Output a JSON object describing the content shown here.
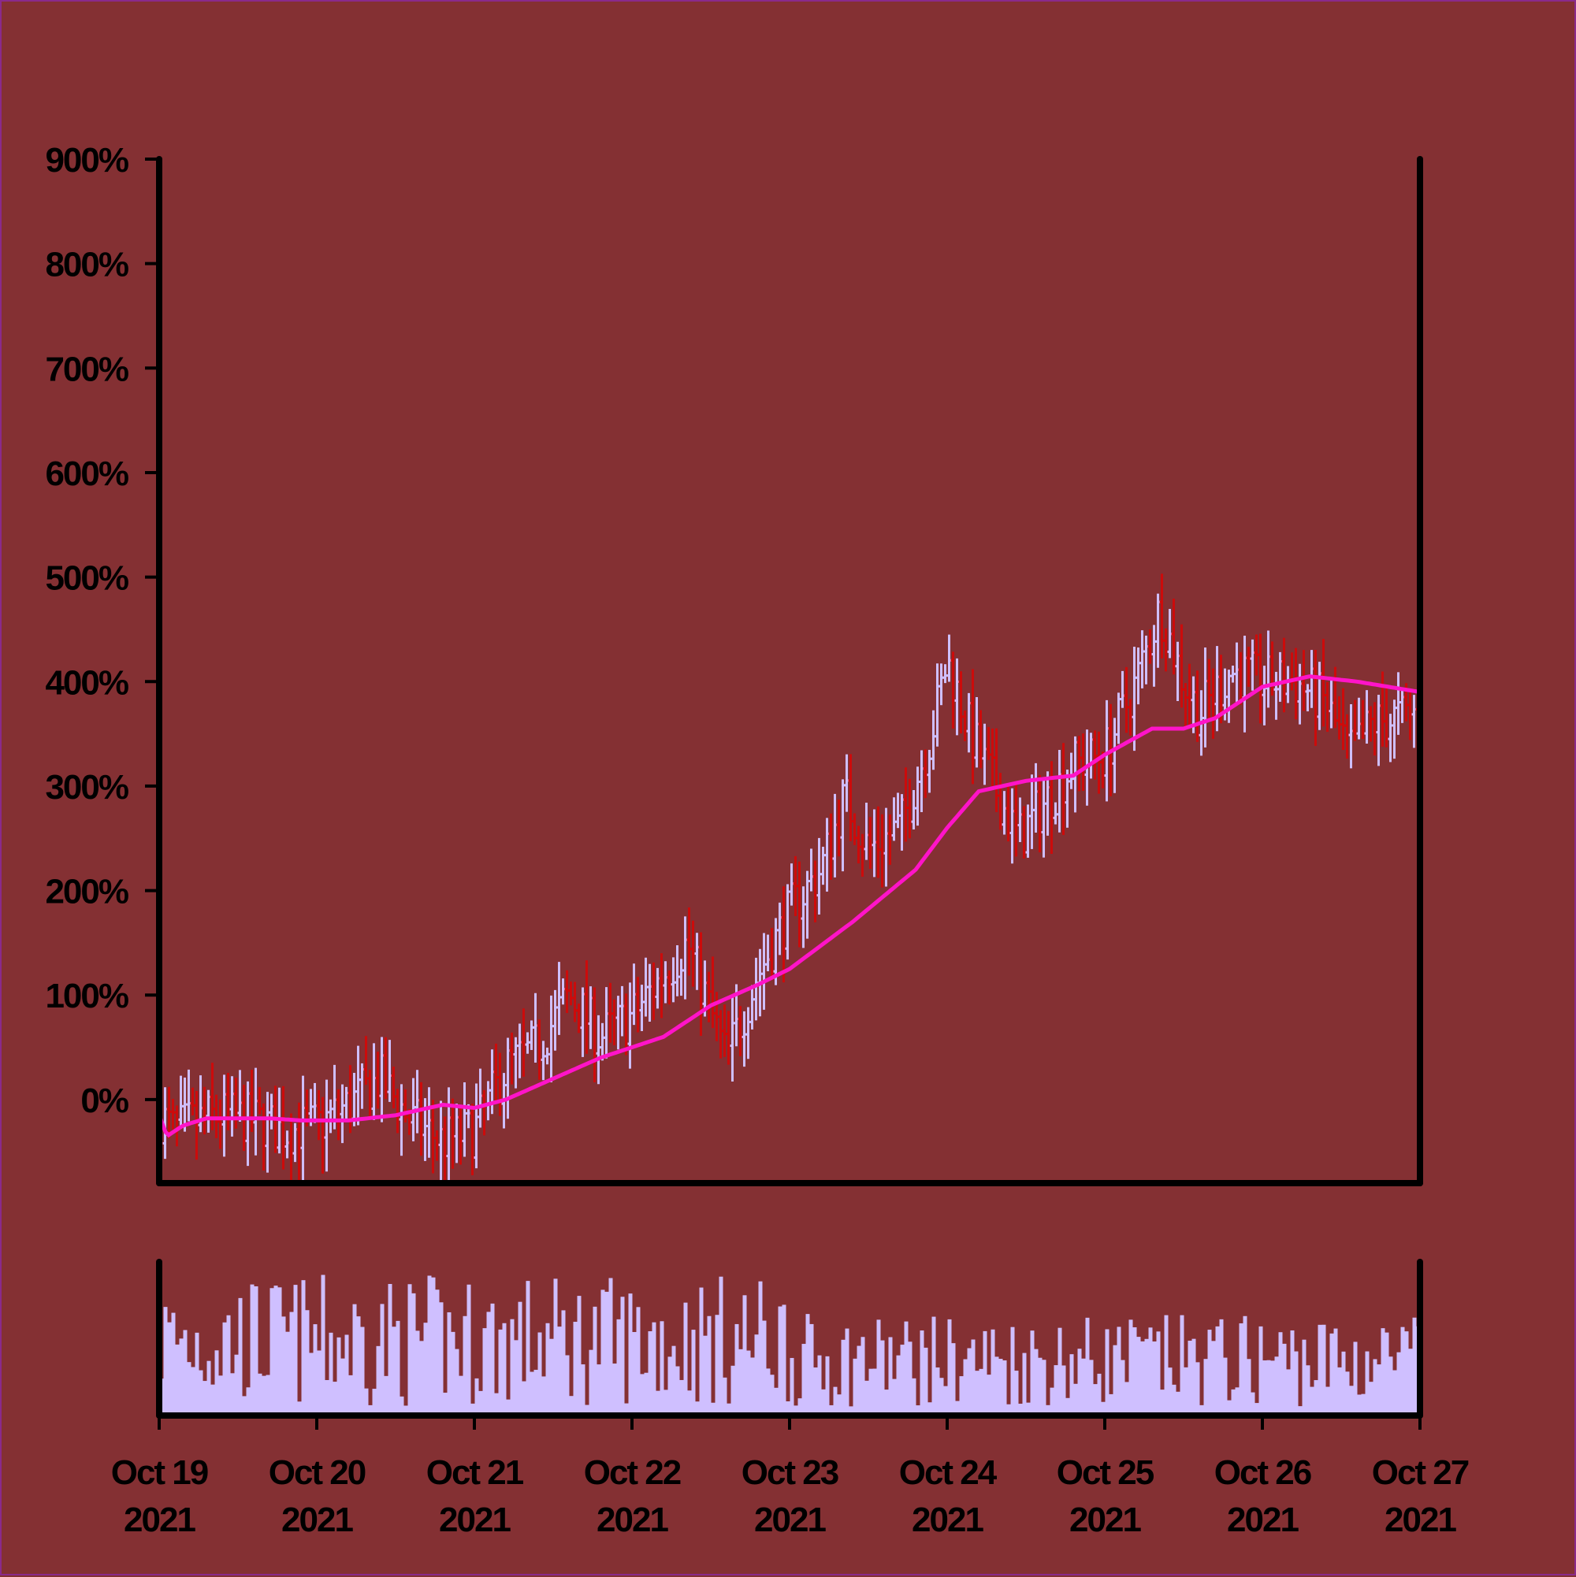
{
  "colors": {
    "background": "#843033",
    "up": "#cfbfff",
    "down": "#cc0b0b",
    "ma": "#ff14c8",
    "volume": "#cfbfff",
    "axis": "#000000"
  },
  "chart_data": {
    "type": "ohlc",
    "title": "",
    "xlabel": "",
    "ylabel": "",
    "x_start": "2021-10-19",
    "x_end": "2021-10-27",
    "bars_per_day": 40,
    "ylim": [
      -80,
      900
    ],
    "y_ticks": [
      {
        "value": 0,
        "label": "0%"
      },
      {
        "value": 100,
        "label": "100%"
      },
      {
        "value": 200,
        "label": "200%"
      },
      {
        "value": 300,
        "label": "300%"
      },
      {
        "value": 400,
        "label": "400%"
      },
      {
        "value": 500,
        "label": "500%"
      },
      {
        "value": 600,
        "label": "600%"
      },
      {
        "value": 700,
        "label": "700%"
      },
      {
        "value": 800,
        "label": "800%"
      },
      {
        "value": 900,
        "label": "900%"
      }
    ],
    "x_ticks": [
      {
        "line1": "Oct 19",
        "line2": "2021"
      },
      {
        "line1": "Oct 20",
        "line2": "2021"
      },
      {
        "line1": "Oct 21",
        "line2": "2021"
      },
      {
        "line1": "Oct 22",
        "line2": "2021"
      },
      {
        "line1": "Oct 23",
        "line2": "2021"
      },
      {
        "line1": "Oct 24",
        "line2": "2021"
      },
      {
        "line1": "Oct 25",
        "line2": "2021"
      },
      {
        "line1": "Oct 26",
        "line2": "2021"
      },
      {
        "line1": "Oct 27",
        "line2": "2021"
      }
    ],
    "close_path": [
      [
        0,
        -15
      ],
      [
        0.1,
        -30
      ],
      [
        0.25,
        -20
      ],
      [
        0.4,
        -15
      ],
      [
        0.6,
        -20
      ],
      [
        0.8,
        -30
      ],
      [
        1.0,
        -25
      ],
      [
        1.2,
        -5
      ],
      [
        1.4,
        20
      ],
      [
        1.6,
        -20
      ],
      [
        1.8,
        -40
      ],
      [
        2.0,
        -30
      ],
      [
        2.2,
        30
      ],
      [
        2.4,
        50
      ],
      [
        2.6,
        100
      ],
      [
        2.8,
        60
      ],
      [
        3.0,
        80
      ],
      [
        3.2,
        120
      ],
      [
        3.35,
        150
      ],
      [
        3.6,
        40
      ],
      [
        3.8,
        120
      ],
      [
        4.0,
        180
      ],
      [
        4.2,
        220
      ],
      [
        4.35,
        290
      ],
      [
        4.5,
        240
      ],
      [
        4.7,
        260
      ],
      [
        4.9,
        350
      ],
      [
        5.0,
        420
      ],
      [
        5.15,
        350
      ],
      [
        5.3,
        300
      ],
      [
        5.45,
        250
      ],
      [
        5.6,
        280
      ],
      [
        5.8,
        320
      ],
      [
        6.0,
        330
      ],
      [
        6.2,
        400
      ],
      [
        6.35,
        470
      ],
      [
        6.5,
        400
      ],
      [
        6.6,
        370
      ],
      [
        6.8,
        410
      ],
      [
        7.0,
        400
      ],
      [
        7.2,
        400
      ],
      [
        7.4,
        380
      ],
      [
        7.55,
        330
      ],
      [
        7.7,
        360
      ],
      [
        8.0,
        370
      ]
    ],
    "ma_path": [
      [
        0,
        -15
      ],
      [
        0.05,
        -35
      ],
      [
        0.15,
        -25
      ],
      [
        0.3,
        -18
      ],
      [
        0.5,
        -18
      ],
      [
        0.7,
        -18
      ],
      [
        0.9,
        -20
      ],
      [
        1.2,
        -20
      ],
      [
        1.5,
        -15
      ],
      [
        1.8,
        -5
      ],
      [
        2.0,
        -8
      ],
      [
        2.2,
        0
      ],
      [
        2.5,
        20
      ],
      [
        2.8,
        40
      ],
      [
        3.0,
        50
      ],
      [
        3.2,
        60
      ],
      [
        3.5,
        90
      ],
      [
        3.8,
        110
      ],
      [
        4.0,
        125
      ],
      [
        4.4,
        170
      ],
      [
        4.8,
        220
      ],
      [
        5.0,
        260
      ],
      [
        5.2,
        295
      ],
      [
        5.5,
        305
      ],
      [
        5.8,
        310
      ],
      [
        6.0,
        330
      ],
      [
        6.3,
        355
      ],
      [
        6.5,
        355
      ],
      [
        6.7,
        365
      ],
      [
        7.0,
        395
      ],
      [
        7.3,
        405
      ],
      [
        7.6,
        400
      ],
      [
        7.8,
        395
      ],
      [
        8.0,
        390
      ]
    ],
    "ma_period": 20,
    "volume": {
      "ylim": [
        0,
        1
      ],
      "min": 0.02,
      "max": 0.98
    }
  }
}
